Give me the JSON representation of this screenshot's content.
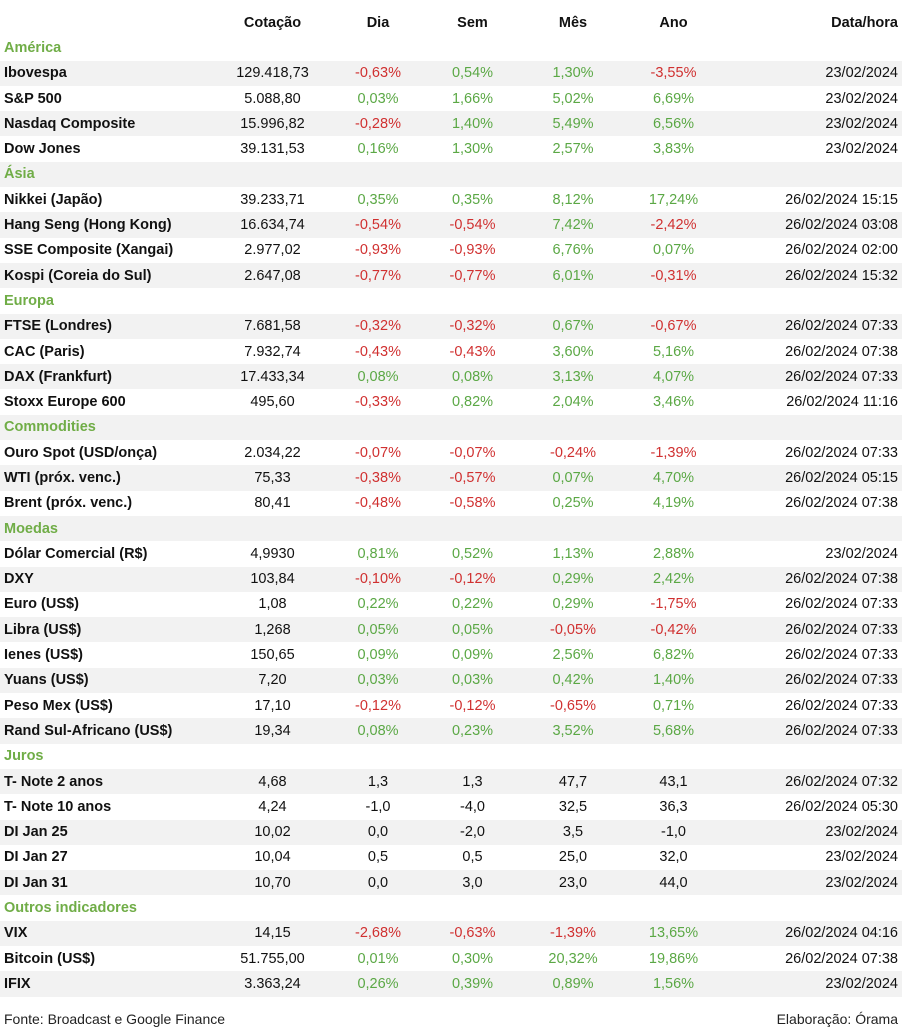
{
  "colors": {
    "section": "#70AD47",
    "positive": "#5BA845",
    "negative": "#D03030",
    "shade": "#F2F2F2"
  },
  "headers": [
    "",
    "Cotação",
    "Dia",
    "Sem",
    "Mês",
    "Ano",
    "Data/hora"
  ],
  "sections": [
    {
      "title": "América",
      "rows": [
        {
          "name": "Ibovespa",
          "cot": "129.418,73",
          "dia": "-0,63%",
          "sem": "0,54%",
          "mes": "1,30%",
          "ano": "-3,55%",
          "dt": "23/02/2024"
        },
        {
          "name": "S&P 500",
          "cot": "5.088,80",
          "dia": "0,03%",
          "sem": "1,66%",
          "mes": "5,02%",
          "ano": "6,69%",
          "dt": "23/02/2024"
        },
        {
          "name": "Nasdaq Composite",
          "cot": "15.996,82",
          "dia": "-0,28%",
          "sem": "1,40%",
          "mes": "5,49%",
          "ano": "6,56%",
          "dt": "23/02/2024"
        },
        {
          "name": "Dow Jones",
          "cot": "39.131,53",
          "dia": "0,16%",
          "sem": "1,30%",
          "mes": "2,57%",
          "ano": "3,83%",
          "dt": "23/02/2024"
        }
      ]
    },
    {
      "title": "Ásia",
      "rows": [
        {
          "name": "Nikkei (Japão)",
          "cot": "39.233,71",
          "dia": "0,35%",
          "sem": "0,35%",
          "mes": "8,12%",
          "ano": "17,24%",
          "dt": "26/02/2024 15:15"
        },
        {
          "name": "Hang Seng (Hong Kong)",
          "cot": "16.634,74",
          "dia": "-0,54%",
          "sem": "-0,54%",
          "mes": "7,42%",
          "ano": "-2,42%",
          "dt": "26/02/2024 03:08"
        },
        {
          "name": "SSE Composite (Xangai)",
          "cot": "2.977,02",
          "dia": "-0,93%",
          "sem": "-0,93%",
          "mes": "6,76%",
          "ano": "0,07%",
          "dt": "26/02/2024 02:00"
        },
        {
          "name": "Kospi (Coreia do Sul)",
          "cot": "2.647,08",
          "dia": "-0,77%",
          "sem": "-0,77%",
          "mes": "6,01%",
          "ano": "-0,31%",
          "dt": "26/02/2024 15:32"
        }
      ]
    },
    {
      "title": "Europa",
      "rows": [
        {
          "name": "FTSE (Londres)",
          "cot": "7.681,58",
          "dia": "-0,32%",
          "sem": "-0,32%",
          "mes": "0,67%",
          "ano": "-0,67%",
          "dt": "26/02/2024 07:33"
        },
        {
          "name": "CAC (Paris)",
          "cot": "7.932,74",
          "dia": "-0,43%",
          "sem": "-0,43%",
          "mes": "3,60%",
          "ano": "5,16%",
          "dt": "26/02/2024 07:38"
        },
        {
          "name": "DAX (Frankfurt)",
          "cot": "17.433,34",
          "dia": "0,08%",
          "sem": "0,08%",
          "mes": "3,13%",
          "ano": "4,07%",
          "dt": "26/02/2024 07:33"
        },
        {
          "name": "Stoxx Europe 600",
          "cot": "495,60",
          "dia": "-0,33%",
          "sem": "0,82%",
          "mes": "2,04%",
          "ano": "3,46%",
          "dt": "26/02/2024 11:16"
        }
      ]
    },
    {
      "title": "Commodities",
      "rows": [
        {
          "name": "Ouro Spot (USD/onça)",
          "cot": "2.034,22",
          "dia": "-0,07%",
          "sem": "-0,07%",
          "mes": "-0,24%",
          "ano": "-1,39%",
          "dt": "26/02/2024 07:33"
        },
        {
          "name": "WTI (próx. venc.)",
          "cot": "75,33",
          "dia": "-0,38%",
          "sem": "-0,57%",
          "mes": "0,07%",
          "ano": "4,70%",
          "dt": "26/02/2024 05:15"
        },
        {
          "name": "Brent (próx. venc.)",
          "cot": "80,41",
          "dia": "-0,48%",
          "sem": "-0,58%",
          "mes": "0,25%",
          "ano": "4,19%",
          "dt": "26/02/2024 07:38"
        }
      ]
    },
    {
      "title": "Moedas",
      "rows": [
        {
          "name": "Dólar Comercial (R$)",
          "cot": "4,9930",
          "dia": "0,81%",
          "sem": "0,52%",
          "mes": "1,13%",
          "ano": "2,88%",
          "dt": "23/02/2024"
        },
        {
          "name": "DXY",
          "cot": "103,84",
          "dia": "-0,10%",
          "sem": "-0,12%",
          "mes": "0,29%",
          "ano": "2,42%",
          "dt": "26/02/2024 07:38"
        },
        {
          "name": "Euro (US$)",
          "cot": "1,08",
          "dia": "0,22%",
          "sem": "0,22%",
          "mes": "0,29%",
          "ano": "-1,75%",
          "dt": "26/02/2024 07:33"
        },
        {
          "name": "Libra (US$)",
          "cot": "1,268",
          "dia": "0,05%",
          "sem": "0,05%",
          "mes": "-0,05%",
          "ano": "-0,42%",
          "dt": "26/02/2024 07:33"
        },
        {
          "name": "Ienes (US$)",
          "cot": "150,65",
          "dia": "0,09%",
          "sem": "0,09%",
          "mes": "2,56%",
          "ano": "6,82%",
          "dt": "26/02/2024 07:33"
        },
        {
          "name": "Yuans (US$)",
          "cot": "7,20",
          "dia": "0,03%",
          "sem": "0,03%",
          "mes": "0,42%",
          "ano": "1,40%",
          "dt": "26/02/2024 07:33"
        },
        {
          "name": "Peso Mex (US$)",
          "cot": "17,10",
          "dia": "-0,12%",
          "sem": "-0,12%",
          "mes": "-0,65%",
          "ano": "0,71%",
          "dt": "26/02/2024 07:33"
        },
        {
          "name": "Rand Sul-Africano (US$)",
          "cot": "19,34",
          "dia": "0,08%",
          "sem": "0,23%",
          "mes": "3,52%",
          "ano": "5,68%",
          "dt": "26/02/2024 07:33"
        }
      ]
    },
    {
      "title": "Juros",
      "rows": [
        {
          "name": "T- Note 2 anos",
          "cot": "4,68",
          "dia": "1,3",
          "sem": "1,3",
          "mes": "47,7",
          "ano": "43,1",
          "dt": "26/02/2024 07:32"
        },
        {
          "name": "T- Note 10 anos",
          "cot": "4,24",
          "dia": "-1,0",
          "sem": "-4,0",
          "mes": "32,5",
          "ano": "36,3",
          "dt": "26/02/2024 05:30"
        },
        {
          "name": "DI Jan 25",
          "cot": "10,02",
          "dia": "0,0",
          "sem": "-2,0",
          "mes": "3,5",
          "ano": "-1,0",
          "dt": "23/02/2024"
        },
        {
          "name": "DI Jan 27",
          "cot": "10,04",
          "dia": "0,5",
          "sem": "0,5",
          "mes": "25,0",
          "ano": "32,0",
          "dt": "23/02/2024"
        },
        {
          "name": "DI Jan 31",
          "cot": "10,70",
          "dia": "0,0",
          "sem": "3,0",
          "mes": "23,0",
          "ano": "44,0",
          "dt": "23/02/2024"
        }
      ]
    },
    {
      "title": "Outros indicadores",
      "rows": [
        {
          "name": "VIX",
          "cot": "14,15",
          "dia": "-2,68%",
          "sem": "-0,63%",
          "mes": "-1,39%",
          "ano": "13,65%",
          "dt": "26/02/2024 04:16"
        },
        {
          "name": "Bitcoin (US$)",
          "cot": "51.755,00",
          "dia": "0,01%",
          "sem": "0,30%",
          "mes": "20,32%",
          "ano": "19,86%",
          "dt": "26/02/2024 07:38"
        },
        {
          "name": "IFIX",
          "cot": "3.363,24",
          "dia": "0,26%",
          "sem": "0,39%",
          "mes": "0,89%",
          "ano": "1,56%",
          "dt": "23/02/2024"
        }
      ]
    }
  ],
  "footer": {
    "source": "Fonte: Broadcast e Google Finance",
    "credit": "Elaboração: Órama"
  }
}
